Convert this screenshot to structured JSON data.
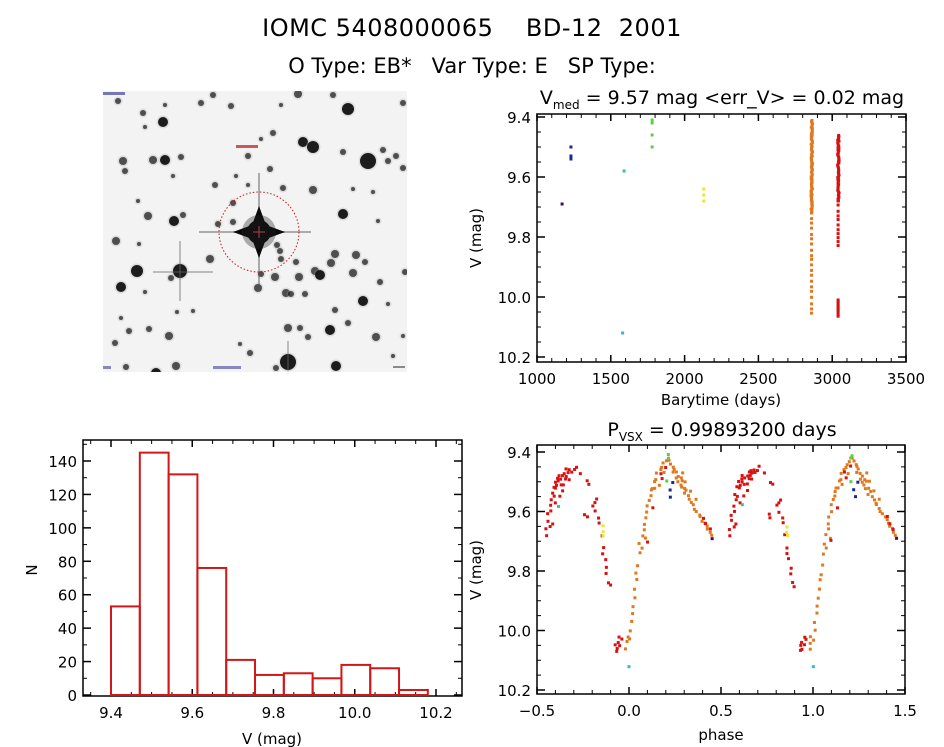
{
  "header": {
    "title_line1": "IOMC 5408000065    BD-12  2001",
    "title_line2": "O Type: EB*   Var Type: E   SP Type:"
  },
  "image_panel": {
    "description": "star field finder image centered on target",
    "marker": "red dotted circle around target star"
  },
  "chart_data": [
    {
      "id": "light_curve",
      "type": "scatter",
      "title_main": "V",
      "title_sub": "med",
      "title_rest": " = 9.57 mag <err_V> = 0.02 mag",
      "xlabel": "Barytime (days)",
      "ylabel": "V (mag)",
      "xlim": [
        1000,
        3500
      ],
      "ylim": [
        10.2,
        9.4
      ],
      "y_inverted": true,
      "xticks": [
        1000,
        1500,
        2000,
        2500,
        3000,
        3500
      ],
      "xtick_labels": [
        "1000",
        "1500",
        "2000",
        "2500",
        "3000",
        "3500"
      ],
      "yticks": [
        9.4,
        9.6,
        9.8,
        10.0,
        10.2
      ],
      "ytick_labels": [
        "9.4",
        "9.6",
        "9.8",
        "10.0",
        "10.2"
      ],
      "series": [
        {
          "name": "season-1",
          "color": "#3a1060",
          "points": [
            [
              1170,
              9.69
            ]
          ]
        },
        {
          "name": "season-2",
          "color": "#1a2a8a",
          "points": [
            [
              1230,
              9.5
            ],
            [
              1230,
              9.53
            ],
            [
              1230,
              9.54
            ]
          ]
        },
        {
          "name": "season-3",
          "color": "#30b8d8",
          "points": [
            [
              1580,
              10.12
            ]
          ]
        },
        {
          "name": "season-4",
          "color": "#30c890",
          "points": [
            [
              1590,
              9.58
            ]
          ]
        },
        {
          "name": "season-5",
          "color": "#5ad040",
          "points": [
            [
              1780,
              9.41
            ],
            [
              1780,
              9.42
            ],
            [
              1780,
              9.46
            ],
            [
              1780,
              9.5
            ]
          ]
        },
        {
          "name": "season-6",
          "color": "#e8e830",
          "points": [
            [
              2130,
              9.64
            ],
            [
              2130,
              9.66
            ],
            [
              2130,
              9.68
            ]
          ]
        },
        {
          "name": "season-7",
          "color": "#e07820",
          "range": {
            "x": 2860,
            "ymin": 9.41,
            "ymax": 10.06,
            "dense_to": 9.72
          }
        },
        {
          "name": "season-8",
          "color": "#d81010",
          "range": {
            "x": 3040,
            "ymin": 9.46,
            "ymax": 9.84,
            "dense_to": 9.68,
            "extra": [
              10.01,
              10.07
            ]
          }
        }
      ]
    },
    {
      "id": "histogram",
      "type": "bar",
      "xlabel": "V (mag)",
      "ylabel": "N",
      "xlim": [
        9.35,
        10.25
      ],
      "ylim": [
        0,
        150
      ],
      "xticks": [
        9.4,
        9.6,
        9.8,
        10.0,
        10.2
      ],
      "xtick_labels": [
        "9.4",
        "9.6",
        "9.8",
        "10.0",
        "10.2"
      ],
      "yticks": [
        0,
        20,
        40,
        60,
        80,
        100,
        120,
        140
      ],
      "ytick_labels": [
        "0",
        "20",
        "40",
        "60",
        "80",
        "100",
        "120",
        "140"
      ],
      "bin_start": 9.4,
      "bin_width": 0.0709,
      "values": [
        53,
        145,
        132,
        76,
        21,
        12,
        13,
        10,
        18,
        16,
        3
      ],
      "color": "#d01818"
    },
    {
      "id": "phase_curve",
      "type": "scatter",
      "title_main": "P",
      "title_sub": "VSX",
      "title_rest": " = 0.99893200 days",
      "xlabel": "phase",
      "ylabel": "V (mag)",
      "xlim": [
        -0.5,
        1.5
      ],
      "ylim": [
        10.2,
        9.4
      ],
      "y_inverted": true,
      "xticks": [
        -0.5,
        0.0,
        0.5,
        1.0,
        1.5
      ],
      "xtick_labels": [
        "−0.5",
        "0.0",
        "0.5",
        "1.0",
        "1.5"
      ],
      "yticks": [
        9.4,
        9.6,
        9.8,
        10.0,
        10.2
      ],
      "ytick_labels": [
        "9.4",
        "9.6",
        "9.8",
        "10.0",
        "10.2"
      ],
      "period_days": 0.998932,
      "repeat_offset": 1.0,
      "colors": {
        "red": "#d81010",
        "orange": "#e07820",
        "green": "#5ad040",
        "teal": "#30c890",
        "blue": "#1a2a8a",
        "yellow": "#e8e830",
        "cyan": "#30b8d8",
        "purple": "#3a1060"
      },
      "points": [
        [
          "red",
          -0.45,
          9.68
        ],
        [
          "red",
          -0.45,
          9.66
        ],
        [
          "red",
          -0.44,
          9.63
        ],
        [
          "red",
          -0.44,
          9.61
        ],
        [
          "red",
          -0.43,
          9.58
        ],
        [
          "red",
          -0.43,
          9.6
        ],
        [
          "red",
          -0.42,
          9.56
        ],
        [
          "red",
          -0.42,
          9.54
        ],
        [
          "red",
          -0.41,
          9.52
        ],
        [
          "red",
          -0.41,
          9.55
        ],
        [
          "red",
          -0.4,
          9.5
        ],
        [
          "red",
          -0.4,
          9.52
        ],
        [
          "red",
          -0.39,
          9.49
        ],
        [
          "red",
          -0.39,
          9.51
        ],
        [
          "red",
          -0.38,
          9.5
        ],
        [
          "red",
          -0.38,
          9.48
        ],
        [
          "red",
          -0.37,
          9.49
        ],
        [
          "red",
          -0.37,
          9.51
        ],
        [
          "red",
          -0.36,
          9.48
        ],
        [
          "red",
          -0.36,
          9.53
        ],
        [
          "red",
          -0.35,
          9.47
        ],
        [
          "red",
          -0.35,
          9.49
        ],
        [
          "red",
          -0.34,
          9.48
        ],
        [
          "red",
          -0.34,
          9.46
        ],
        [
          "red",
          -0.33,
          9.47
        ],
        [
          "red",
          -0.33,
          9.49
        ],
        [
          "red",
          -0.32,
          9.46
        ],
        [
          "red",
          -0.31,
          9.47
        ],
        [
          "red",
          -0.3,
          9.46
        ],
        [
          "red",
          -0.29,
          9.45
        ],
        [
          "red",
          -0.42,
          9.64
        ],
        [
          "red",
          -0.4,
          9.57
        ],
        [
          "red",
          -0.38,
          9.55
        ],
        [
          "red",
          -0.36,
          9.51
        ],
        [
          "red",
          -0.43,
          9.65
        ],
        [
          "red",
          -0.26,
          9.47
        ],
        [
          "red",
          -0.23,
          9.5
        ],
        [
          "red",
          -0.22,
          9.51
        ],
        [
          "red",
          -0.2,
          9.58
        ],
        [
          "red",
          -0.19,
          9.57
        ],
        [
          "red",
          -0.18,
          9.56
        ],
        [
          "red",
          -0.18,
          9.6
        ],
        [
          "red",
          -0.17,
          9.62
        ],
        [
          "red",
          -0.16,
          9.64
        ],
        [
          "red",
          -0.15,
          9.68
        ],
        [
          "red",
          -0.14,
          9.72
        ],
        [
          "red",
          -0.14,
          9.74
        ],
        [
          "red",
          -0.13,
          9.76
        ],
        [
          "red",
          -0.12,
          9.79
        ],
        [
          "red",
          -0.12,
          9.81
        ],
        [
          "red",
          -0.11,
          9.84
        ],
        [
          "red",
          -0.1,
          9.85
        ],
        [
          "red",
          -0.24,
          9.61
        ],
        [
          "red",
          -0.23,
          9.62
        ],
        [
          "red",
          -0.07,
          10.05
        ],
        [
          "red",
          -0.07,
          10.07
        ],
        [
          "red",
          -0.06,
          10.04
        ],
        [
          "red",
          -0.05,
          10.02
        ],
        [
          "red",
          -0.05,
          10.05
        ],
        [
          "red",
          -0.04,
          10.03
        ],
        [
          "red",
          -0.06,
          10.06
        ],
        [
          "orange",
          -0.02,
          10.06
        ],
        [
          "orange",
          -0.01,
          10.04
        ],
        [
          "orange",
          -0.01,
          10.02
        ],
        [
          "orange",
          0.0,
          10.03
        ],
        [
          "orange",
          0.01,
          10.0
        ],
        [
          "orange",
          0.01,
          9.97
        ],
        [
          "orange",
          0.02,
          9.94
        ],
        [
          "orange",
          0.02,
          9.92
        ],
        [
          "orange",
          0.03,
          9.89
        ],
        [
          "orange",
          0.03,
          9.86
        ],
        [
          "orange",
          0.04,
          9.83
        ],
        [
          "orange",
          0.04,
          9.81
        ],
        [
          "orange",
          0.05,
          9.78
        ],
        [
          "orange",
          0.06,
          9.74
        ],
        [
          "orange",
          0.06,
          9.71
        ],
        [
          "orange",
          0.07,
          9.68
        ],
        [
          "orange",
          0.07,
          9.72
        ],
        [
          "orange",
          0.08,
          9.66
        ],
        [
          "orange",
          0.08,
          9.64
        ],
        [
          "orange",
          0.09,
          9.62
        ],
        [
          "orange",
          0.1,
          9.6
        ],
        [
          "orange",
          0.1,
          9.58
        ],
        [
          "orange",
          0.11,
          9.56
        ],
        [
          "orange",
          0.12,
          9.55
        ],
        [
          "orange",
          0.12,
          9.53
        ],
        [
          "orange",
          0.13,
          9.52
        ],
        [
          "orange",
          0.14,
          9.5
        ],
        [
          "orange",
          0.15,
          9.49
        ],
        [
          "orange",
          0.15,
          9.47
        ],
        [
          "orange",
          0.16,
          9.51
        ],
        [
          "orange",
          0.17,
          9.46
        ],
        [
          "orange",
          0.18,
          9.45
        ],
        [
          "orange",
          0.19,
          9.44
        ],
        [
          "orange",
          0.2,
          9.43
        ],
        [
          "orange",
          0.21,
          9.42
        ],
        [
          "orange",
          0.22,
          9.43
        ],
        [
          "orange",
          0.23,
          9.44
        ],
        [
          "orange",
          0.24,
          9.45
        ],
        [
          "orange",
          0.25,
          9.46
        ],
        [
          "orange",
          0.26,
          9.47
        ],
        [
          "orange",
          0.26,
          9.49
        ],
        [
          "orange",
          0.27,
          9.48
        ],
        [
          "orange",
          0.27,
          9.5
        ],
        [
          "orange",
          0.28,
          9.49
        ],
        [
          "orange",
          0.28,
          9.51
        ],
        [
          "orange",
          0.29,
          9.5
        ],
        [
          "orange",
          0.29,
          9.52
        ],
        [
          "orange",
          0.3,
          9.52
        ],
        [
          "orange",
          0.3,
          9.54
        ],
        [
          "orange",
          0.31,
          9.53
        ],
        [
          "orange",
          0.32,
          9.55
        ],
        [
          "orange",
          0.33,
          9.56
        ],
        [
          "orange",
          0.34,
          9.57
        ],
        [
          "orange",
          0.35,
          9.58
        ],
        [
          "orange",
          0.36,
          9.59
        ],
        [
          "orange",
          0.37,
          9.6
        ],
        [
          "orange",
          0.38,
          9.61
        ],
        [
          "orange",
          0.39,
          9.62
        ],
        [
          "orange",
          0.4,
          9.63
        ],
        [
          "orange",
          0.41,
          9.64
        ],
        [
          "orange",
          0.42,
          9.65
        ],
        [
          "orange",
          0.43,
          9.66
        ],
        [
          "orange",
          0.44,
          9.67
        ],
        [
          "orange",
          0.45,
          9.68
        ],
        [
          "orange",
          0.29,
          9.47
        ],
        [
          "orange",
          0.31,
          9.5
        ],
        [
          "orange",
          0.33,
          9.53
        ],
        [
          "orange",
          0.36,
          9.56
        ],
        [
          "orange",
          0.24,
          9.47
        ],
        [
          "orange",
          0.19,
          9.47
        ],
        [
          "orange",
          0.14,
          9.52
        ],
        [
          "orange",
          0.09,
          9.69
        ],
        [
          "red",
          0.17,
          9.47
        ],
        [
          "red",
          0.18,
          9.49
        ],
        [
          "red",
          0.2,
          9.45
        ],
        [
          "red",
          0.1,
          9.7
        ],
        [
          "red",
          0.4,
          9.62
        ],
        [
          "red",
          0.42,
          9.64
        ],
        [
          "red",
          0.44,
          9.66
        ],
        [
          "red",
          0.13,
          9.59
        ],
        [
          "green",
          0.21,
          9.41
        ],
        [
          "green",
          0.21,
          9.5
        ],
        [
          "blue",
          0.22,
          9.53
        ],
        [
          "blue",
          0.23,
          9.55
        ],
        [
          "blue",
          0.24,
          9.5
        ],
        [
          "teal",
          -0.38,
          9.58
        ],
        [
          "yellow",
          -0.14,
          9.65
        ],
        [
          "yellow",
          -0.14,
          9.67
        ],
        [
          "yellow",
          -0.14,
          9.68
        ],
        [
          "cyan",
          0.0,
          10.12
        ],
        [
          "purple",
          0.45,
          9.69
        ],
        [
          "green",
          0.21,
          9.42
        ]
      ]
    }
  ]
}
